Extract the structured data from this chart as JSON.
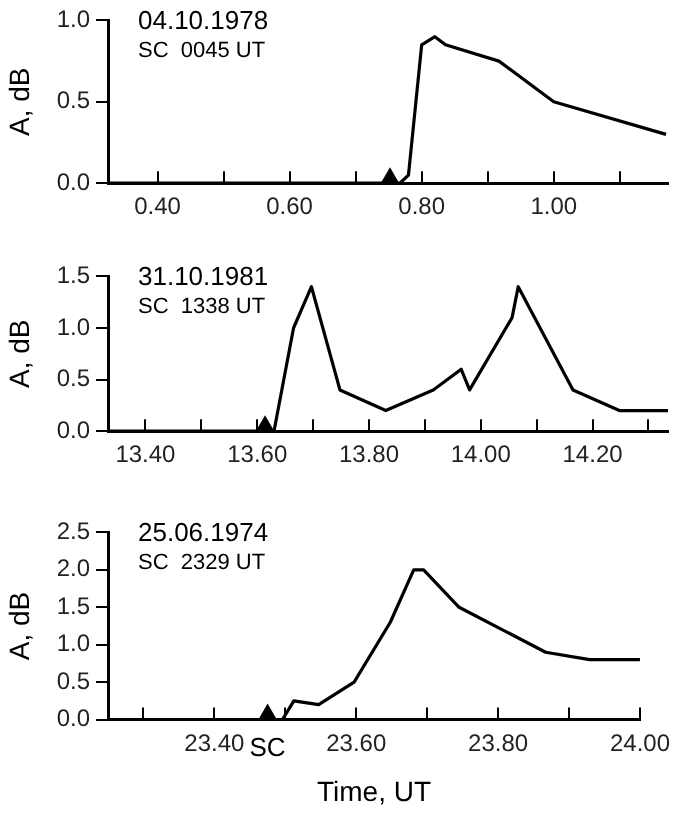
{
  "chart_data": [
    {
      "type": "line",
      "ylabel": "A, dB",
      "annotations": [
        "04.10.1978",
        "SC  0045 UT"
      ],
      "series": [
        {
          "type": "line",
          "color": "#000000",
          "marker": "none",
          "x": [
            0.325,
            0.767,
            0.78,
            0.8,
            0.82,
            0.836,
            0.917,
            1.0,
            1.17
          ],
          "values": [
            0,
            0,
            0.05,
            0.85,
            0.9,
            0.85,
            0.75,
            0.5,
            0.3
          ]
        },
        {
          "type": "scatter",
          "color": "#000000",
          "marker": "triangle",
          "x": [
            0.752
          ],
          "values": [
            0
          ]
        }
      ],
      "xlim": [
        0.325,
        1.173
      ],
      "xticks": [
        {
          "value": 0.4,
          "label": "0.40"
        },
        {
          "value": 0.5,
          "label": null
        },
        {
          "value": 0.6,
          "label": "0.60"
        },
        {
          "value": 0.7,
          "label": null
        },
        {
          "value": 0.8,
          "label": "0.80"
        },
        {
          "value": 0.9,
          "label": null
        },
        {
          "value": 1.0,
          "label": "1.00"
        },
        {
          "value": 1.1,
          "label": null
        }
      ],
      "ylim": [
        0,
        1.0
      ],
      "yticks": [
        {
          "value": 0,
          "label": "0.0"
        },
        {
          "value": 0.5,
          "label": "0.5"
        },
        {
          "value": 1.0,
          "label": "1.0"
        }
      ],
      "grid": false,
      "legend": false
    },
    {
      "type": "line",
      "ylabel": "A, dB",
      "annotations": [
        "31.10.1981",
        "SC  1338 UT"
      ],
      "series": [
        {
          "type": "line",
          "color": "#000000",
          "marker": "none",
          "x": [
            13.333,
            13.63,
            13.665,
            13.697,
            13.748,
            13.83,
            13.915,
            13.965,
            13.98,
            14.056,
            14.067,
            14.165,
            14.248,
            14.335
          ],
          "values": [
            0,
            0,
            1.0,
            1.4,
            0.4,
            0.2,
            0.4,
            0.6,
            0.4,
            1.1,
            1.4,
            0.4,
            0.2,
            0.2
          ]
        },
        {
          "type": "scatter",
          "color": "#000000",
          "marker": "triangle",
          "x": [
            13.614
          ],
          "values": [
            0
          ]
        }
      ],
      "xlim": [
        13.333,
        14.335
      ],
      "xticks": [
        {
          "value": 13.4,
          "label": "13.40"
        },
        {
          "value": 13.5,
          "label": null
        },
        {
          "value": 13.6,
          "label": "13.60"
        },
        {
          "value": 13.7,
          "label": null
        },
        {
          "value": 13.8,
          "label": "13.80"
        },
        {
          "value": 13.9,
          "label": null
        },
        {
          "value": 14.0,
          "label": "14.00"
        },
        {
          "value": 14.1,
          "label": null
        },
        {
          "value": 14.2,
          "label": "14.20"
        },
        {
          "value": 14.3,
          "label": null
        }
      ],
      "ylim": [
        0,
        1.5
      ],
      "yticks": [
        {
          "value": 0,
          "label": "0.0"
        },
        {
          "value": 0.5,
          "label": "0.5"
        },
        {
          "value": 1.0,
          "label": "1.0"
        },
        {
          "value": 1.5,
          "label": "1.5"
        }
      ],
      "grid": false,
      "legend": false
    },
    {
      "type": "line",
      "ylabel": "A, dB",
      "xlabel": "Time, UT",
      "annotations": [
        "25.06.1974",
        "SC  2329 UT",
        {
          "text": "SC",
          "x": 23.475,
          "y": 0
        }
      ],
      "series": [
        {
          "type": "line",
          "color": "#000000",
          "marker": "none",
          "x": [
            23.25,
            23.496,
            23.512,
            23.547,
            23.597,
            23.648,
            23.681,
            23.695,
            23.745,
            23.867,
            23.929,
            24.0
          ],
          "values": [
            0,
            0,
            0.25,
            0.2,
            0.5,
            1.3,
            2.0,
            2.0,
            1.5,
            0.9,
            0.8,
            0.8
          ]
        },
        {
          "type": "scatter",
          "color": "#000000",
          "marker": "triangle",
          "x": [
            23.475
          ],
          "values": [
            0
          ]
        }
      ],
      "xlim": [
        23.25,
        24.0
      ],
      "xticks": [
        {
          "value": 23.3,
          "label": null
        },
        {
          "value": 23.4,
          "label": "23.40"
        },
        {
          "value": 23.5,
          "label": null
        },
        {
          "value": 23.6,
          "label": "23.60"
        },
        {
          "value": 23.7,
          "label": null
        },
        {
          "value": 23.8,
          "label": "23.80"
        },
        {
          "value": 23.9,
          "label": null
        },
        {
          "value": 24.0,
          "label": "24.00"
        }
      ],
      "ylim": [
        0,
        2.5
      ],
      "yticks": [
        {
          "value": 0,
          "label": "0.0"
        },
        {
          "value": 0.5,
          "label": "0.5"
        },
        {
          "value": 1.0,
          "label": "1.0"
        },
        {
          "value": 1.5,
          "label": "1.5"
        },
        {
          "value": 2.0,
          "label": "2.0"
        },
        {
          "value": 2.5,
          "label": "2.5"
        }
      ],
      "grid": false,
      "legend": false
    }
  ]
}
